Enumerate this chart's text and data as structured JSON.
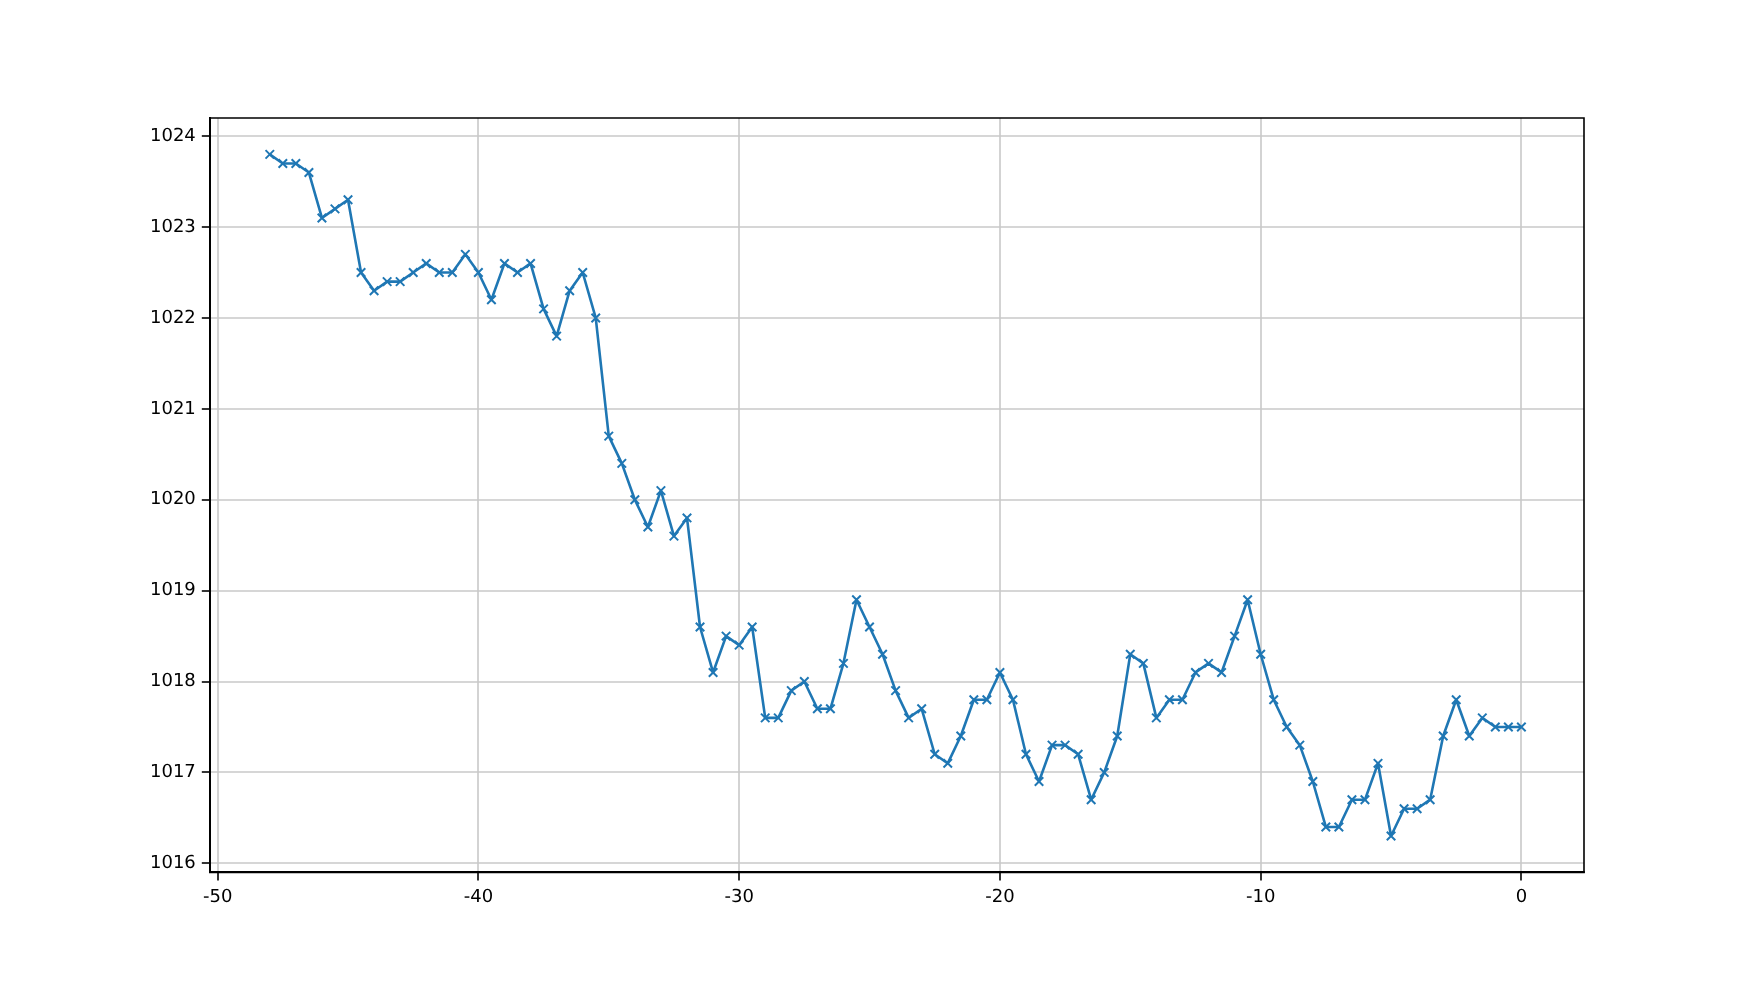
{
  "chart_data": {
    "type": "line",
    "x": [
      -48,
      -47.5,
      -47,
      -46.5,
      -46,
      -45.5,
      -45,
      -44.5,
      -44,
      -43.5,
      -43,
      -42.5,
      -42,
      -41.5,
      -41,
      -40.5,
      -40,
      -39.5,
      -39,
      -38.5,
      -38,
      -37.5,
      -37,
      -36.5,
      -36,
      -35.5,
      -35,
      -34.5,
      -34,
      -33.5,
      -33,
      -32.5,
      -32,
      -31.5,
      -31,
      -30.5,
      -30,
      -29.5,
      -29,
      -28.5,
      -28,
      -27.5,
      -27,
      -26.5,
      -26,
      -25.5,
      -25,
      -24.5,
      -24,
      -23.5,
      -23,
      -22.5,
      -22,
      -21.5,
      -21,
      -20.5,
      -20,
      -19.5,
      -19,
      -18.5,
      -18,
      -17.5,
      -17,
      -16.5,
      -16,
      -15.5,
      -15,
      -14.5,
      -14,
      -13.5,
      -13,
      -12.5,
      -12,
      -11.5,
      -11,
      -10.5,
      -10,
      -9.5,
      -9,
      -8.5,
      -8,
      -7.5,
      -7,
      -6.5,
      -6,
      -5.5,
      -5,
      -4.5,
      -4,
      -3.5,
      -3,
      -2.5,
      -2,
      -1.5,
      -1,
      -0.5,
      0
    ],
    "series": [
      {
        "color": "#1f77b4",
        "values": [
          1023.8,
          1023.7,
          1023.7,
          1023.6,
          1023.1,
          1023.2,
          1023.3,
          1022.5,
          1022.3,
          1022.4,
          1022.4,
          1022.5,
          1022.6,
          1022.5,
          1022.5,
          1022.7,
          1022.5,
          1022.2,
          1022.6,
          1022.5,
          1022.6,
          1022.1,
          1021.8,
          1022.3,
          1022.5,
          1022.0,
          1020.7,
          1020.4,
          1020.0,
          1019.7,
          1020.1,
          1019.6,
          1019.8,
          1018.6,
          1018.1,
          1018.5,
          1018.4,
          1018.6,
          1017.6,
          1017.6,
          1017.9,
          1018.0,
          1017.7,
          1017.7,
          1018.2,
          1018.9,
          1018.6,
          1018.3,
          1017.9,
          1017.6,
          1017.7,
          1017.2,
          1017.1,
          1017.4,
          1017.8,
          1017.8,
          1018.1,
          1017.8,
          1017.2,
          1016.9,
          1017.3,
          1017.3,
          1017.2,
          1016.7,
          1017.0,
          1017.4,
          1018.3,
          1018.2,
          1017.6,
          1017.8,
          1017.8,
          1018.1,
          1018.2,
          1018.1,
          1018.5,
          1018.9,
          1018.3,
          1017.8,
          1017.5,
          1017.3,
          1016.9,
          1016.4,
          1016.4,
          1016.7,
          1016.7,
          1017.1,
          1016.3,
          1016.6,
          1016.6,
          1016.7,
          1017.4,
          1017.8,
          1017.4,
          1017.6,
          1017.5,
          1017.5,
          1017.5
        ]
      }
    ],
    "xlim": [
      -50.3,
      2.4
    ],
    "ylim": [
      1015.9,
      1024.2
    ],
    "xticks": [
      -50,
      -40,
      -30,
      -20,
      -10,
      0
    ],
    "yticks": [
      1016,
      1017,
      1018,
      1019,
      1020,
      1021,
      1022,
      1023,
      1024
    ],
    "grid": true,
    "marker": "cross",
    "line_style": "solid",
    "legend": false
  }
}
